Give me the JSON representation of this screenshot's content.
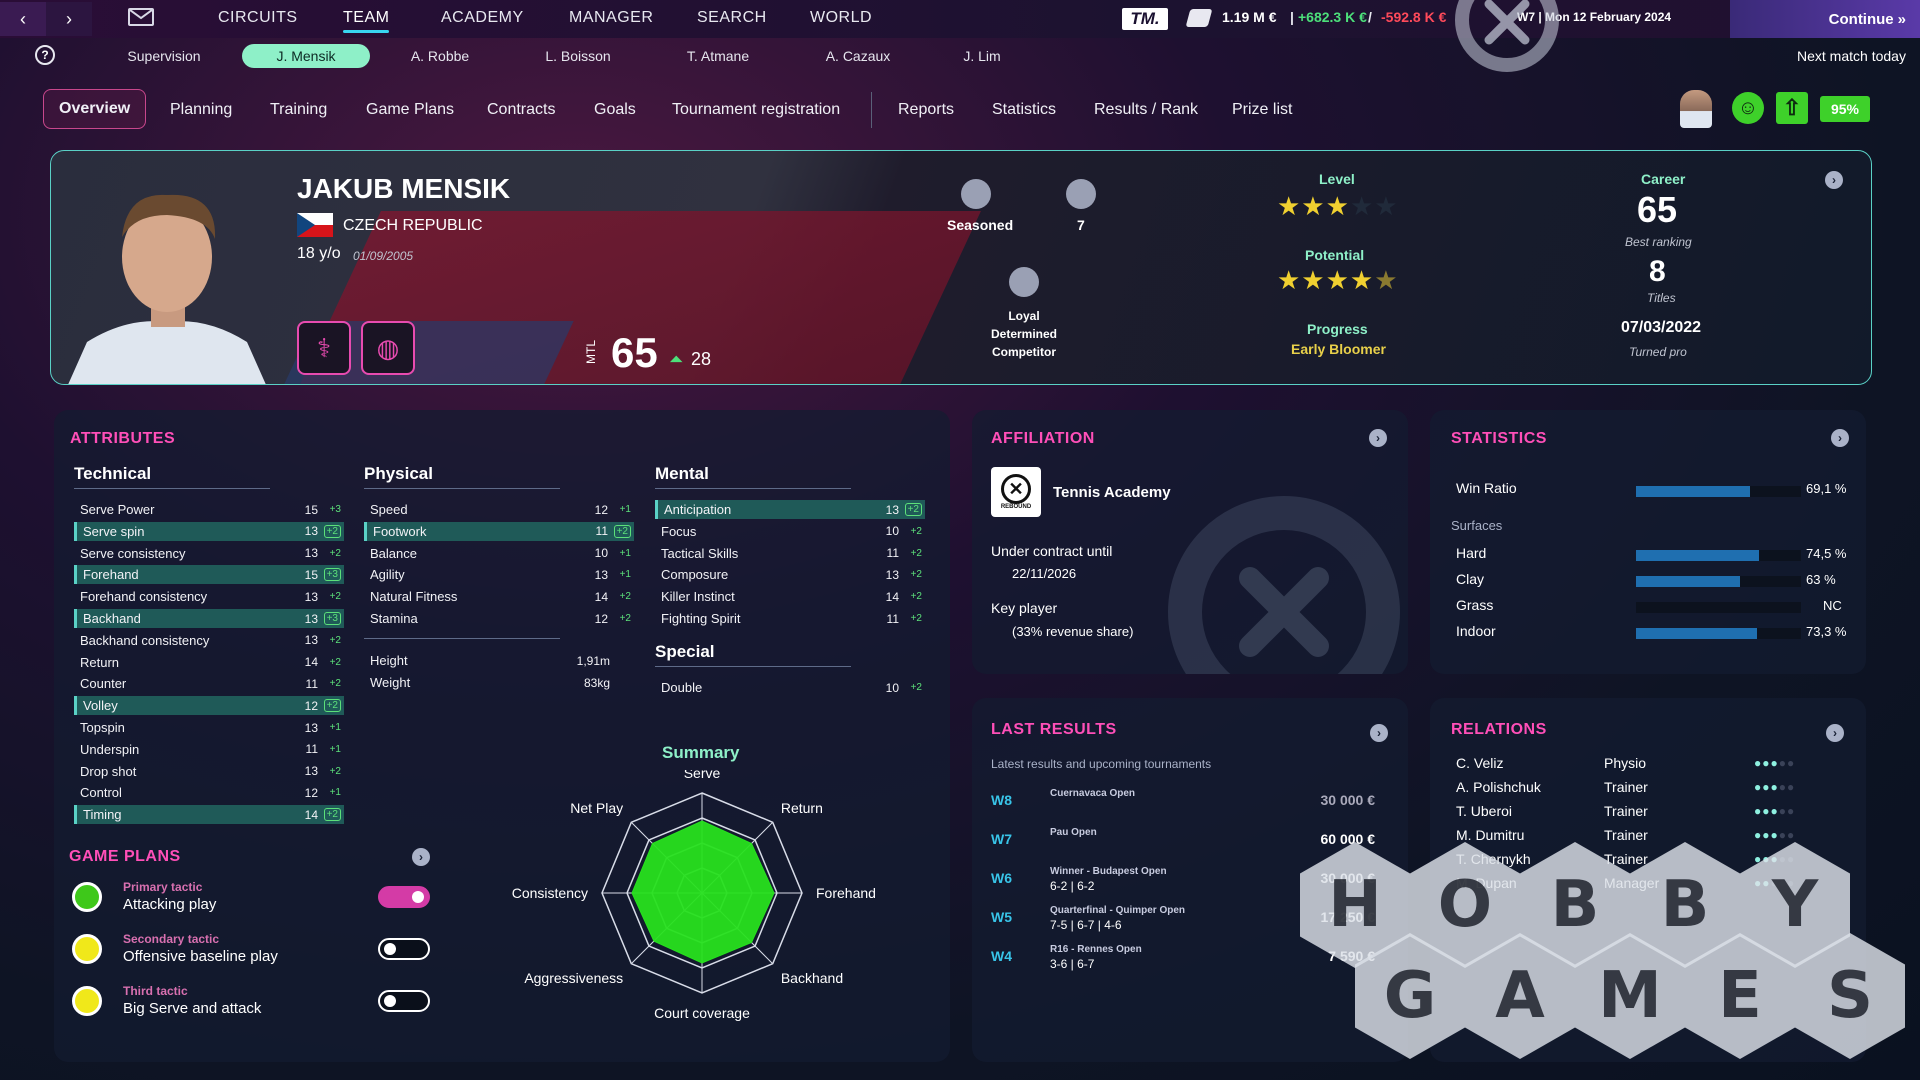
{
  "topnav": {
    "items": [
      "CIRCUITS",
      "TEAM",
      "ACADEMY",
      "MANAGER",
      "SEARCH",
      "WORLD"
    ],
    "active": "TEAM",
    "logo": "TM.",
    "money": "1.19 M €",
    "income": "+682.3 K €",
    "expense": "-592.8 K €",
    "date": "W7 | Mon 12 February 2024",
    "continue": "Continue",
    "next_match": "Next match today"
  },
  "players": [
    "Supervision",
    "J. Mensik",
    "A. Robbe",
    "L. Boisson",
    "T. Atmane",
    "A. Cazaux",
    "J. Lim"
  ],
  "subtabs": [
    "Overview",
    "Planning",
    "Training",
    "Game Plans",
    "Contracts",
    "Goals",
    "Tournament registration",
    "Reports",
    "Statistics",
    "Results / Rank",
    "Prize list"
  ],
  "mood_percent": "95%",
  "player": {
    "name": "JAKUB MENSIK",
    "country": "CZECH REPUBLIC",
    "age": "18 y/o",
    "dob": "01/09/2005",
    "mtl_label": "MTL",
    "mtl": "65",
    "mtl_gain": "28",
    "seasoned": "Seasoned",
    "count": "7",
    "traits": [
      "Loyal",
      "Determined",
      "Competitor"
    ],
    "level_label": "Level",
    "level_stars": 3,
    "potential_label": "Potential",
    "potential_stars": 4.5,
    "progress_label": "Progress",
    "progress": "Early Bloomer",
    "career_label": "Career",
    "best_ranking": "65",
    "best_ranking_label": "Best ranking",
    "titles": "8",
    "titles_label": "Titles",
    "turned_pro": "07/03/2022",
    "turned_pro_label": "Turned pro"
  },
  "attributes": {
    "title": "ATTRIBUTES",
    "technical_title": "Technical",
    "physical_title": "Physical",
    "mental_title": "Mental",
    "special_title": "Special",
    "technical": [
      {
        "name": "Serve Power",
        "val": "15",
        "inc": "+3",
        "hl": false
      },
      {
        "name": "Serve spin",
        "val": "13",
        "inc": "+2",
        "hl": true
      },
      {
        "name": "Serve consistency",
        "val": "13",
        "inc": "+2",
        "hl": false
      },
      {
        "name": "Forehand",
        "val": "15",
        "inc": "+3",
        "hl": true
      },
      {
        "name": "Forehand consistency",
        "val": "13",
        "inc": "+2",
        "hl": false
      },
      {
        "name": "Backhand",
        "val": "13",
        "inc": "+3",
        "hl": true
      },
      {
        "name": "Backhand consistency",
        "val": "13",
        "inc": "+2",
        "hl": false
      },
      {
        "name": "Return",
        "val": "14",
        "inc": "+2",
        "hl": false
      },
      {
        "name": "Counter",
        "val": "11",
        "inc": "+2",
        "hl": false
      },
      {
        "name": "Volley",
        "val": "12",
        "inc": "+2",
        "hl": true
      },
      {
        "name": "Topspin",
        "val": "13",
        "inc": "+1",
        "hl": false
      },
      {
        "name": "Underspin",
        "val": "11",
        "inc": "+1",
        "hl": false
      },
      {
        "name": "Drop shot",
        "val": "13",
        "inc": "+2",
        "hl": false
      },
      {
        "name": "Control",
        "val": "12",
        "inc": "+1",
        "hl": false
      },
      {
        "name": "Timing",
        "val": "14",
        "inc": "+2",
        "hl": true
      }
    ],
    "physical": [
      {
        "name": "Speed",
        "val": "12",
        "inc": "+1",
        "hl": false
      },
      {
        "name": "Footwork",
        "val": "11",
        "inc": "+2",
        "hl": true
      },
      {
        "name": "Balance",
        "val": "10",
        "inc": "+1",
        "hl": false
      },
      {
        "name": "Agility",
        "val": "13",
        "inc": "+1",
        "hl": false
      },
      {
        "name": "Natural Fitness",
        "val": "14",
        "inc": "+2",
        "hl": false
      },
      {
        "name": "Stamina",
        "val": "12",
        "inc": "+2",
        "hl": false
      }
    ],
    "height_label": "Height",
    "height": "1,91m",
    "weight_label": "Weight",
    "weight": "83kg",
    "mental": [
      {
        "name": "Anticipation",
        "val": "13",
        "inc": "+2",
        "hl": true
      },
      {
        "name": "Focus",
        "val": "10",
        "inc": "+2",
        "hl": false
      },
      {
        "name": "Tactical Skills",
        "val": "11",
        "inc": "+2",
        "hl": false
      },
      {
        "name": "Composure",
        "val": "13",
        "inc": "+2",
        "hl": false
      },
      {
        "name": "Killer Instinct",
        "val": "14",
        "inc": "+2",
        "hl": false
      },
      {
        "name": "Fighting Spirit",
        "val": "11",
        "inc": "+2",
        "hl": false
      }
    ],
    "special": [
      {
        "name": "Double",
        "val": "10",
        "inc": "+2",
        "hl": false
      }
    ]
  },
  "summary": {
    "title": "Summary",
    "axes": [
      "Serve",
      "Return",
      "Forehand",
      "Backhand",
      "Court coverage",
      "Aggressiveness",
      "Consistency",
      "Net Play"
    ],
    "values": [
      0.72,
      0.7,
      0.72,
      0.7,
      0.7,
      0.68,
      0.7,
      0.7
    ],
    "color": "#27e01e"
  },
  "game_plans": {
    "title": "GAME PLANS",
    "items": [
      {
        "kind": "Primary tactic",
        "name": "Attacking play",
        "on": true,
        "color": "#3ec81a"
      },
      {
        "kind": "Secondary tactic",
        "name": "Offensive baseline play",
        "on": false,
        "color": "#f0e81a"
      },
      {
        "kind": "Third tactic",
        "name": "Big Serve and attack",
        "on": false,
        "color": "#f0e81a"
      }
    ]
  },
  "affiliation": {
    "title": "AFFILIATION",
    "academy": "Tennis Academy",
    "logo_text": "REBOUND",
    "contract_label": "Under contract until",
    "contract": "22/11/2026",
    "key_label": "Key player",
    "key": "(33% revenue share)"
  },
  "statistics": {
    "title": "STATISTICS",
    "win_label": "Win Ratio",
    "win_value": "69,1 %",
    "win_fraction": 0.691,
    "surfaces_label": "Surfaces",
    "surfaces": [
      {
        "name": "Hard",
        "value": "74,5 %",
        "frac": 0.745
      },
      {
        "name": "Clay",
        "value": "63 %",
        "frac": 0.63
      },
      {
        "name": "Grass",
        "value": "NC",
        "frac": 0
      },
      {
        "name": "Indoor",
        "value": "73,3 %",
        "frac": 0.733
      }
    ]
  },
  "last_results": {
    "title": "LAST RESULTS",
    "subtitle": "Latest results and upcoming tournaments",
    "items": [
      {
        "week": "W8",
        "title": "Cuernavaca Open",
        "score": "",
        "prize": "30 000 €",
        "dim": true
      },
      {
        "week": "W7",
        "title": "Pau Open",
        "score": "",
        "prize": "60 000 €",
        "dim": false
      },
      {
        "week": "W6",
        "title": "Winner - Budapest Open",
        "score": "6-2 | 6-2",
        "prize": "30 000 €",
        "dim": false
      },
      {
        "week": "W5",
        "title": "Quarterfinal - Quimper Open",
        "score": "7-5 | 6-7 | 4-6",
        "prize": "17 250 €",
        "dim": false
      },
      {
        "week": "W4",
        "title": "R16 - Rennes Open",
        "score": "3-6 | 6-7",
        "prize": "7 590 €",
        "dim": false
      }
    ]
  },
  "relations": {
    "title": "RELATIONS",
    "items": [
      {
        "name": "C. Veliz",
        "role": "Physio",
        "level": 2.5
      },
      {
        "name": "A. Polishchuk",
        "role": "Trainer",
        "level": 3
      },
      {
        "name": "T. Uberoi",
        "role": "Trainer",
        "level": 2.5
      },
      {
        "name": "M. Dumitru",
        "role": "Trainer",
        "level": 2.5
      },
      {
        "name": "T. Chernykh",
        "role": "Trainer",
        "level": 3
      },
      {
        "name": "M. Dupan",
        "role": "Manager",
        "level": 2
      }
    ]
  },
  "watermark": {
    "row1": [
      "H",
      "O",
      "B",
      "B",
      "Y"
    ],
    "row2": [
      "G",
      "A",
      "M",
      "E",
      "S"
    ]
  }
}
